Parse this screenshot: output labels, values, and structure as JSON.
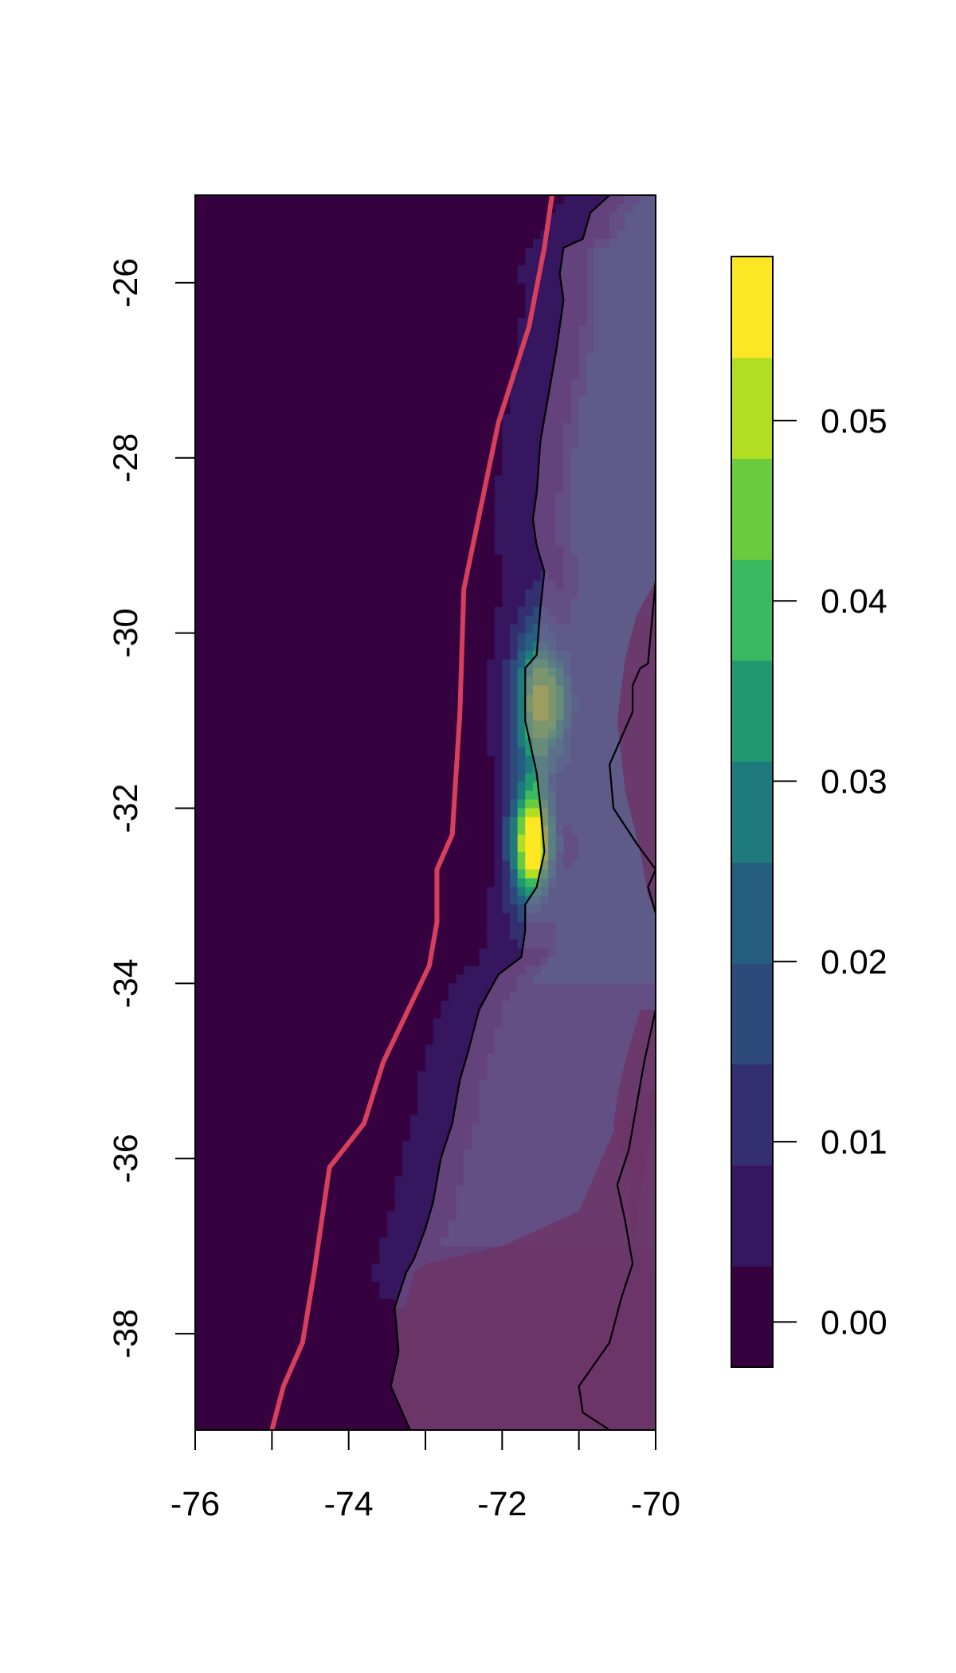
{
  "chart_data": {
    "type": "heatmap",
    "title": "",
    "xlabel": "",
    "ylabel": "",
    "xlim": [
      -76,
      -70
    ],
    "ylim": [
      -39.1,
      -25
    ],
    "x_ticks": [
      -76,
      -75,
      -74,
      -73,
      -72,
      -71,
      -70
    ],
    "x_tick_labels": [
      "-76",
      "",
      "-74",
      "",
      "-72",
      "",
      "-70"
    ],
    "y_ticks": [
      -26,
      -28,
      -30,
      -32,
      -34,
      -36,
      -38
    ],
    "y_tick_labels": [
      "-26",
      "-28",
      "-30",
      "-32",
      "-34",
      "-36",
      "-38"
    ],
    "grid": false,
    "legend_placement": "right",
    "colorbar": {
      "breaks": [
        -0.0025,
        0.0031,
        0.0087,
        0.0143,
        0.0199,
        0.0255,
        0.0311,
        0.0367,
        0.0423,
        0.0479,
        0.0535,
        0.0591
      ],
      "colors": [
        "#35013f",
        "#35165f",
        "#342f71",
        "#2c4a7a",
        "#255e81",
        "#1f7a7d",
        "#209970",
        "#3bb960",
        "#6bcb3e",
        "#b1dd22",
        "#fde725"
      ],
      "ticks": [
        0.0,
        0.01,
        0.02,
        0.03,
        0.04,
        0.05
      ],
      "tick_labels": [
        "0.00",
        "0.01",
        "0.02",
        "0.03",
        "0.04",
        "0.05"
      ]
    },
    "background_color": "#35013f",
    "land_regions": [
      {
        "name": "argentina-east",
        "color": "#6c3567",
        "lon": [
          -70.6,
          -70.95,
          -71.0,
          -70.3,
          -70.25,
          -70.3,
          -70.2,
          -70.1,
          -70.0,
          -70.0,
          -70.2,
          -70.4,
          -70.5,
          -70.55,
          -70.5,
          -70.3,
          -70.35,
          -70.3,
          -70.2,
          -70.0,
          -70.0,
          -70.1
        ],
        "lat": [
          -39.1,
          -38.9,
          -38.6,
          -38.2,
          -37.6,
          -37.1,
          -36.4,
          -35.9,
          -35.6,
          -34.3,
          -34.3,
          -34.9,
          -35.3,
          -35.6,
          -35.8,
          -36.2,
          -36.6,
          -36.9,
          -37.2,
          -37.3,
          -39.1,
          -39.1
        ]
      },
      {
        "name": "chile-land-low",
        "color": "#6c3567",
        "lon": [
          -73.2,
          -73.45,
          -73.35,
          -73.3,
          -73.15,
          -73.0,
          -72.0,
          -71.0,
          -70.5,
          -70.0,
          -70.0
        ],
        "lat": [
          -39.1,
          -38.6,
          -38.2,
          -37.8,
          -37.3,
          -37.2,
          -37.0,
          -36.6,
          -35.6,
          -35.2,
          -39.1
        ]
      },
      {
        "name": "argentina-north",
        "color": "#6c3567",
        "lon": [
          -70.0,
          -70.25,
          -70.4,
          -70.5,
          -70.4,
          -70.2,
          -70.1,
          -70.0
        ],
        "lat": [
          -29.4,
          -29.8,
          -30.3,
          -31.0,
          -31.8,
          -32.5,
          -33.0,
          -33.2
        ]
      }
    ],
    "coastline": {
      "lon": [
        -73.2,
        -73.45,
        -73.35,
        -73.4,
        -73.25,
        -73.15,
        -73.0,
        -72.9,
        -72.8,
        -72.65,
        -72.55,
        -72.45,
        -72.3,
        -72.05,
        -71.75,
        -71.7,
        -71.7,
        -71.55,
        -71.45,
        -71.5,
        -71.55,
        -71.7,
        -71.7,
        -71.55,
        -71.5,
        -71.45,
        -71.55,
        -71.6,
        -71.55,
        -71.5,
        -71.4,
        -71.3,
        -71.2,
        -71.25,
        -71.2,
        -70.95,
        -70.85,
        -70.6
      ],
      "lat": [
        -39.1,
        -38.6,
        -38.2,
        -37.7,
        -37.3,
        -37.15,
        -36.8,
        -36.5,
        -36.0,
        -35.6,
        -35.1,
        -34.8,
        -34.3,
        -33.9,
        -33.7,
        -33.4,
        -33.1,
        -32.9,
        -32.5,
        -32.0,
        -31.6,
        -31.0,
        -30.4,
        -30.25,
        -29.7,
        -29.3,
        -29.0,
        -28.7,
        -28.4,
        -27.8,
        -27.3,
        -26.8,
        -26.2,
        -25.9,
        -25.6,
        -25.5,
        -25.2,
        -25.0
      ]
    },
    "borders": [
      {
        "lon": [
          -70.6,
          -70.95,
          -71.0,
          -70.6,
          -70.45,
          -70.3,
          -70.4,
          -70.5,
          -70.35,
          -70.25,
          -70.15,
          -70.0
        ],
        "lat": [
          -39.1,
          -38.9,
          -38.6,
          -38.1,
          -37.6,
          -37.2,
          -36.7,
          -36.3,
          -35.9,
          -35.4,
          -34.9,
          -34.3
        ]
      },
      {
        "lon": [
          -70.0,
          -70.1,
          -70.0,
          -70.25,
          -70.55,
          -70.6,
          -70.45,
          -70.3,
          -70.3,
          -70.2,
          -70.1,
          -70.0
        ],
        "lat": [
          -33.2,
          -32.9,
          -32.7,
          -32.4,
          -32.0,
          -31.5,
          -31.2,
          -30.9,
          -30.6,
          -30.4,
          -30.35,
          -29.4
        ]
      }
    ],
    "overlay_line": {
      "color": "#d7405c",
      "lon": [
        -75.0,
        -74.85,
        -74.6,
        -74.45,
        -74.25,
        -73.8,
        -73.55,
        -72.95,
        -72.85,
        -72.85,
        -72.65,
        -72.55,
        -72.5,
        -72.05,
        -71.65,
        -71.45,
        -71.35
      ],
      "lat": [
        -39.1,
        -38.6,
        -38.1,
        -37.3,
        -36.1,
        -35.6,
        -34.9,
        -33.8,
        -33.3,
        -32.7,
        -32.3,
        -30.9,
        -29.5,
        -27.6,
        -26.5,
        -25.6,
        -25.0
      ]
    },
    "hotspots": [
      {
        "lon": -71.6,
        "lat": -32.4,
        "peak": 0.057,
        "sx": 0.2,
        "sy": 0.45
      },
      {
        "lon": -71.5,
        "lat": -30.8,
        "peak": 0.045,
        "sx": 0.22,
        "sy": 0.55
      }
    ]
  }
}
